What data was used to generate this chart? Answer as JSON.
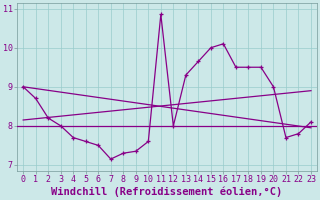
{
  "title": "",
  "xlabel": "Windchill (Refroidissement éolien,°C)",
  "ylabel": "",
  "bg_color": "#cce8e8",
  "line_color": "#880088",
  "grid_color": "#99cccc",
  "xlim": [
    -0.5,
    23.5
  ],
  "ylim": [
    6.85,
    11.15
  ],
  "yticks": [
    7,
    8,
    9,
    10,
    11
  ],
  "xticks": [
    0,
    1,
    2,
    3,
    4,
    5,
    6,
    7,
    8,
    9,
    10,
    11,
    12,
    13,
    14,
    15,
    16,
    17,
    18,
    19,
    20,
    21,
    22,
    23
  ],
  "hours": [
    0,
    1,
    2,
    3,
    4,
    5,
    6,
    7,
    8,
    9,
    10,
    11,
    12,
    13,
    14,
    15,
    16,
    17,
    18,
    19,
    20,
    21,
    22,
    23
  ],
  "data_line": [
    9.0,
    8.7,
    8.2,
    8.0,
    7.7,
    7.6,
    7.5,
    7.15,
    7.3,
    7.35,
    7.6,
    10.85,
    8.0,
    9.3,
    9.65,
    10.0,
    10.1,
    9.5,
    9.5,
    9.5,
    9.0,
    7.7,
    7.8,
    8.1
  ],
  "reg_line1": [
    [
      0,
      8.15
    ],
    [
      23,
      8.9
    ]
  ],
  "reg_line2": [
    [
      0,
      9.0
    ],
    [
      23,
      7.95
    ]
  ],
  "horiz_line_y": 8.0,
  "tick_fontsize": 6,
  "label_fontsize": 7.5
}
